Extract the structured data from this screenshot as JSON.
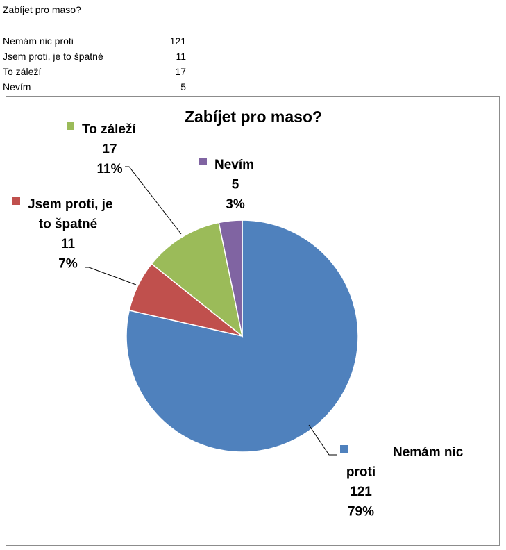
{
  "sheet": {
    "title": "Zabíjet pro maso?",
    "rows": [
      {
        "label": "Nemám nic proti",
        "value": "121"
      },
      {
        "label": "Jsem proti, je to špatné",
        "value": "11"
      },
      {
        "label": "To záleží",
        "value": "17"
      },
      {
        "label": "Nevím",
        "value": "5"
      }
    ]
  },
  "chart_data": {
    "type": "pie",
    "title": "Zabíjet pro maso?",
    "categories": [
      "Nemám nic proti",
      "Jsem proti, je to špatné",
      "To záleží",
      "Nevím"
    ],
    "values": [
      121,
      11,
      17,
      5
    ],
    "percentages": [
      "79%",
      "7%",
      "11%",
      "3%"
    ],
    "colors": [
      "#4f81bd",
      "#c0504d",
      "#9bbb59",
      "#8064a2"
    ],
    "data_labels": [
      {
        "lines": [
          "Nemám nic",
          "proti",
          "121",
          "79%"
        ]
      },
      {
        "lines": [
          "Jsem proti, je",
          "to špatné",
          "11",
          "7%"
        ]
      },
      {
        "lines": [
          "To záleží",
          "17",
          "11%"
        ]
      },
      {
        "lines": [
          "Nevím",
          "5",
          "3%"
        ]
      }
    ],
    "legend": "none",
    "start_angle": "12 o'clock",
    "direction": "clockwise"
  }
}
